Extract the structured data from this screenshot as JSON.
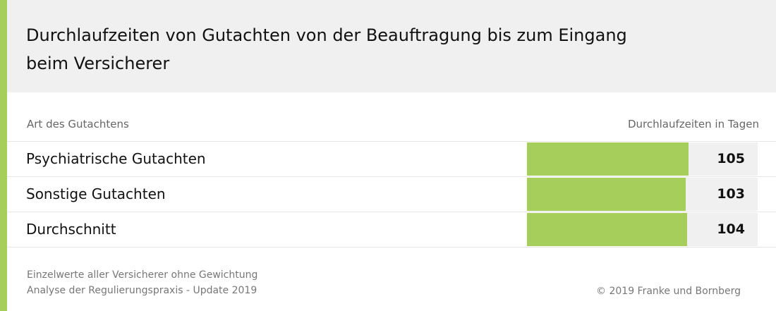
{
  "colors": {
    "accent": "#a6ce5b",
    "bar": "#a6ce5b",
    "track": "#f0f0f0",
    "header_bg": "#f0f0f0"
  },
  "chart_data": {
    "type": "bar",
    "orientation": "horizontal",
    "title": "Durchlaufzeiten von Gutachten von der Beauftragung bis zum Eingang beim Versicherer",
    "category_header": "Art des Gutachtens",
    "value_header": "Durchlaufzeiten in Tagen",
    "categories": [
      "Psychiatrische Gutachten",
      "Sonstige Gutachten",
      "Durchschnitt"
    ],
    "values": [
      105,
      103,
      104
    ],
    "xlim": [
      0,
      150
    ]
  },
  "footer": {
    "note1": "Einzelwerte aller Versicherer ohne Gewichtung",
    "note2": "Analyse der Regulierungspraxis - Update 2019",
    "copyright": "© 2019 Franke und Bornberg"
  }
}
